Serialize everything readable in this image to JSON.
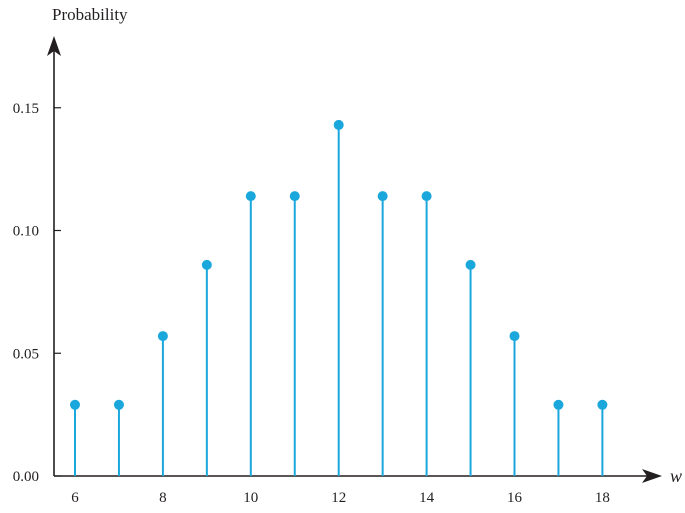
{
  "chart_data": {
    "type": "stem",
    "title": "",
    "ylabel": "Probability",
    "xlabel": "w",
    "x": [
      6,
      7,
      8,
      9,
      10,
      11,
      12,
      13,
      14,
      15,
      16,
      17,
      18
    ],
    "y": [
      0.029,
      0.029,
      0.057,
      0.086,
      0.114,
      0.114,
      0.143,
      0.114,
      0.114,
      0.086,
      0.057,
      0.029,
      0.029
    ],
    "xticks": [
      "6",
      "8",
      "10",
      "12",
      "14",
      "16",
      "18"
    ],
    "yticks": [
      "0.00",
      "0.05",
      "0.10",
      "0.15"
    ],
    "xlim": [
      5.3,
      19.3
    ],
    "ylim": [
      0,
      0.18
    ],
    "grid": false,
    "color": "#1aa7dc"
  }
}
